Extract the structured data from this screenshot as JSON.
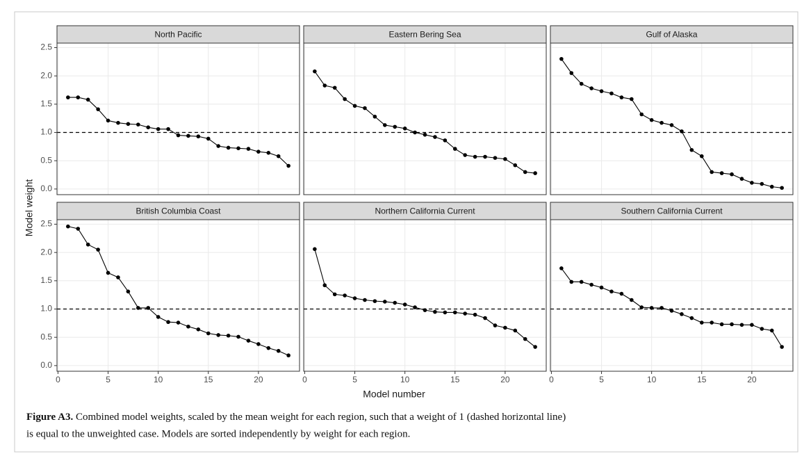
{
  "chart_data": {
    "type": "line",
    "x_label": "Model number",
    "y_label": "Model weight",
    "x": [
      1,
      2,
      3,
      4,
      5,
      6,
      7,
      8,
      9,
      10,
      11,
      12,
      13,
      14,
      15,
      16,
      17,
      18,
      19,
      20,
      21,
      22,
      23
    ],
    "xlim": [
      -0.1,
      24.1
    ],
    "ylim": [
      -0.1,
      2.58
    ],
    "xticks": [
      0,
      5,
      10,
      15,
      20
    ],
    "yticks": [
      {
        "value": 0,
        "label": "0.0"
      },
      0.5,
      {
        "value": 1,
        "label": "1.0"
      },
      1.5,
      {
        "value": 2,
        "label": "2.0"
      },
      2.5
    ],
    "hline": 1,
    "grid": true,
    "color": "#000000",
    "panels": [
      {
        "title": "North Pacific",
        "values": [
          1.62,
          1.62,
          1.58,
          1.41,
          1.21,
          1.17,
          1.15,
          1.14,
          1.09,
          1.06,
          1.06,
          0.95,
          0.94,
          0.93,
          0.89,
          0.76,
          0.73,
          0.72,
          0.71,
          0.66,
          0.64,
          0.58,
          0.41
        ]
      },
      {
        "title": "Eastern Bering Sea",
        "values": [
          2.08,
          1.83,
          1.79,
          1.59,
          1.47,
          1.43,
          1.28,
          1.13,
          1.1,
          1.07,
          1.0,
          0.96,
          0.92,
          0.86,
          0.71,
          0.6,
          0.57,
          0.57,
          0.55,
          0.53,
          0.42,
          0.3,
          0.28
        ]
      },
      {
        "title": "Gulf of Alaska",
        "values": [
          2.3,
          2.05,
          1.86,
          1.78,
          1.73,
          1.69,
          1.62,
          1.59,
          1.32,
          1.22,
          1.17,
          1.13,
          1.02,
          0.69,
          0.58,
          0.3,
          0.28,
          0.26,
          0.18,
          0.11,
          0.09,
          0.04,
          0.02
        ]
      },
      {
        "title": "British Columbia Coast",
        "values": [
          2.46,
          2.42,
          2.14,
          2.05,
          1.64,
          1.56,
          1.31,
          1.02,
          1.02,
          0.86,
          0.77,
          0.76,
          0.69,
          0.64,
          0.57,
          0.54,
          0.53,
          0.51,
          0.44,
          0.38,
          0.31,
          0.26,
          0.18
        ]
      },
      {
        "title": "Northern California Current",
        "values": [
          2.06,
          1.42,
          1.26,
          1.24,
          1.19,
          1.16,
          1.14,
          1.13,
          1.11,
          1.08,
          1.03,
          0.98,
          0.95,
          0.94,
          0.94,
          0.92,
          0.9,
          0.84,
          0.71,
          0.67,
          0.62,
          0.47,
          0.33
        ]
      },
      {
        "title": "Southern California Current",
        "values": [
          1.72,
          1.48,
          1.48,
          1.43,
          1.38,
          1.31,
          1.27,
          1.16,
          1.03,
          1.02,
          1.02,
          0.97,
          0.91,
          0.84,
          0.76,
          0.76,
          0.73,
          0.73,
          0.72,
          0.72,
          0.65,
          0.62,
          0.33
        ]
      }
    ]
  },
  "caption": {
    "label": "Figure A3.",
    "lines": [
      "Combined model weights, scaled by the mean weight for each region, such that a weight of 1 (dashed horizontal line)",
      "is equal to the unweighted case. Models are sorted independently by weight for each region."
    ]
  }
}
